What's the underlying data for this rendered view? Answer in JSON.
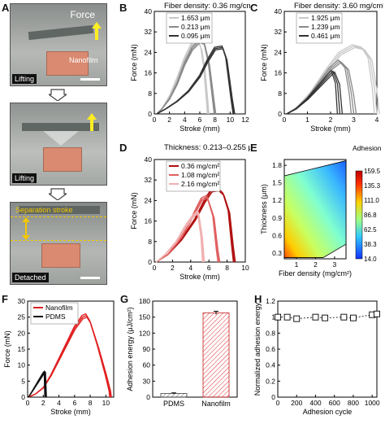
{
  "panel_labels": {
    "A": "A",
    "B": "B",
    "C": "C",
    "D": "D",
    "E": "E",
    "F": "F",
    "G": "G",
    "H": "H"
  },
  "photos": {
    "top": {
      "tag": "Lifting",
      "force": "Force",
      "nanofilm": "Nanofilm"
    },
    "middle": {
      "tag": "Lifting"
    },
    "bottom": {
      "tag": "Detached",
      "separation": "Separation stroke"
    }
  },
  "colors": {
    "pdms_box": "#d98a70",
    "force_label": "#ffffff",
    "arrow": "#ffee22",
    "separation": "#f3c800"
  },
  "chart_data": [
    {
      "id": "B",
      "type": "line",
      "title": "Fiber density: 0.36 mg/cm²",
      "xlabel": "Stroke (mm)",
      "ylabel": "Force (mN)",
      "xlim": [
        0,
        12
      ],
      "ylim": [
        0,
        40
      ],
      "xticks": [
        0,
        2,
        4,
        6,
        8,
        10,
        12
      ],
      "yticks": [
        0,
        8,
        16,
        24,
        32,
        40
      ],
      "legend_position": "top-left",
      "series": [
        {
          "name": "1.653 μm",
          "color": "#c8c8c8",
          "x": [
            0.3,
            1,
            2,
            3,
            4,
            5,
            5.7,
            6.2,
            6.6,
            7.0,
            7.1
          ],
          "y": [
            0,
            2,
            7,
            14,
            22,
            28,
            29.5,
            26,
            18,
            4,
            0
          ]
        },
        {
          "name": "0.213 μm",
          "color": "#8a8a8a",
          "x": [
            0.3,
            1,
            2,
            3,
            4,
            5,
            6,
            6.6,
            7.2,
            7.8,
            8.0
          ],
          "y": [
            0,
            2,
            6,
            12,
            20,
            26,
            29,
            28,
            20,
            5,
            0
          ]
        },
        {
          "name": "0.095 μm",
          "color": "#333333",
          "x": [
            0.3,
            1.5,
            3,
            4.5,
            6,
            7,
            8,
            9,
            9.5,
            10.2,
            10.5
          ],
          "y": [
            0,
            2,
            5,
            9,
            15,
            21,
            26,
            26.5,
            22,
            6,
            0
          ]
        }
      ]
    },
    {
      "id": "C",
      "type": "line",
      "title": "Fiber density: 3.60 mg/cm²",
      "xlabel": "Stroke (mm)",
      "ylabel": "Force (mN)",
      "xlim": [
        0,
        4
      ],
      "ylim": [
        0,
        40
      ],
      "xticks": [
        0,
        1,
        2,
        3,
        4
      ],
      "yticks": [
        0,
        8,
        16,
        24,
        32,
        40
      ],
      "legend_position": "top-left",
      "series": [
        {
          "name": "1.925 μm",
          "color": "#c8c8c8",
          "x": [
            0.1,
            0.6,
            1.2,
            1.8,
            2.4,
            3.0,
            3.4,
            3.7,
            3.9,
            4.0
          ],
          "y": [
            0,
            3,
            9,
            17,
            24,
            27,
            26,
            22,
            10,
            0
          ]
        },
        {
          "name": "1.239 μm",
          "color": "#8a8a8a",
          "x": [
            0.1,
            0.5,
            1.0,
            1.5,
            2.0,
            2.4,
            2.7,
            2.9,
            3.0
          ],
          "y": [
            0,
            2,
            6,
            12,
            18,
            21,
            18,
            8,
            0
          ]
        },
        {
          "name": "0.461 μm",
          "color": "#333333",
          "x": [
            0.1,
            0.5,
            1.0,
            1.4,
            1.8,
            2.1,
            2.3,
            2.4
          ],
          "y": [
            0,
            2,
            6,
            10,
            14,
            17,
            12,
            0
          ]
        }
      ]
    },
    {
      "id": "D",
      "type": "line",
      "title": "Thickness: 0.213–0.255 μm",
      "xlabel": "Stroke (mm)",
      "ylabel": "Force (mN)",
      "xlim": [
        0,
        10
      ],
      "ylim": [
        0,
        40
      ],
      "xticks": [
        0,
        2,
        4,
        6,
        8,
        10
      ],
      "yticks": [
        0,
        8,
        16,
        24,
        32,
        40
      ],
      "legend_position": "top-left",
      "series": [
        {
          "name": "0.36 mg/cm²",
          "color": "#b01010",
          "x": [
            0.2,
            1.5,
            3,
            4.5,
            5.5,
            6.3,
            7.0,
            7.6,
            8.2,
            8.6,
            8.8
          ],
          "y": [
            0,
            3,
            9,
            17,
            24,
            28.5,
            29,
            27,
            20,
            6,
            0
          ]
        },
        {
          "name": "1.08 mg/cm²",
          "color": "#e06060",
          "x": [
            0.2,
            1.5,
            3,
            4.2,
            5.2,
            5.8,
            6.5,
            6.9,
            7.1
          ],
          "y": [
            0,
            3,
            10,
            18,
            25,
            26,
            18,
            5,
            0
          ]
        },
        {
          "name": "2.16 mg/cm²",
          "color": "#f0b0b0",
          "x": [
            0.2,
            1.2,
            2.4,
            3.4,
            4.2,
            4.8,
            5.2,
            5.4
          ],
          "y": [
            0,
            3,
            8,
            14,
            18,
            20,
            10,
            0
          ]
        }
      ]
    },
    {
      "id": "E",
      "type": "heatmap",
      "xlabel": "Fiber density (mg/cm²)",
      "ylabel": "Thickness (μm)",
      "xlim": [
        0.36,
        3.6
      ],
      "ylim": [
        0.2,
        1.9
      ],
      "xticks": [
        1,
        2,
        3
      ],
      "yticks": [
        0.3,
        0.6,
        0.9,
        1.2,
        1.5,
        1.8
      ],
      "colorbar_title": "Adhesion energy (μJ/cm²)",
      "colorbar_ticks": [
        159.5,
        135.3,
        111.0,
        86.8,
        62.5,
        38.3,
        14.0
      ],
      "colorbar_range": [
        14.0,
        159.5
      ]
    },
    {
      "id": "F",
      "type": "line",
      "xlabel": "Stroke (mm)",
      "ylabel": "Force (mN)",
      "xlim": [
        0,
        11
      ],
      "ylim": [
        0,
        30
      ],
      "xticks": [
        0,
        2,
        4,
        6,
        8,
        10
      ],
      "yticks": [
        0,
        5,
        10,
        15,
        20,
        25,
        30
      ],
      "legend_position": "top-left",
      "series": [
        {
          "name": "Nanofilm",
          "color": "#e02020",
          "x": [
            0.1,
            1,
            2,
            3,
            4,
            5,
            6,
            7,
            7.5,
            8,
            9,
            10,
            10.5,
            10.6
          ],
          "y": [
            0,
            1,
            3,
            7,
            12,
            17,
            22,
            25.5,
            26,
            24,
            16,
            7,
            2,
            0
          ]
        },
        {
          "name": "PDMS",
          "color": "#111111",
          "x": [
            0.1,
            0.5,
            1.0,
            1.5,
            2.0,
            2.2,
            2.3
          ],
          "y": [
            0,
            1.5,
            3.5,
            5.5,
            7.5,
            8,
            0
          ]
        }
      ]
    },
    {
      "id": "G",
      "type": "bar",
      "ylabel": "Adhesion energy (μJ/cm²)",
      "categories": [
        "PDMS",
        "Nanofilm"
      ],
      "values": [
        7,
        158
      ],
      "errors": [
        1,
        3
      ],
      "ylim": [
        0,
        180
      ],
      "yticks": [
        0,
        30,
        60,
        90,
        120,
        150,
        180
      ]
    },
    {
      "id": "H",
      "type": "scatter",
      "xlabel": "Adhesion cycle",
      "ylabel": "Normalized adhesion energy",
      "xlim": [
        0,
        1050
      ],
      "ylim": [
        0,
        1.2
      ],
      "xticks": [
        0,
        200,
        400,
        600,
        800,
        1000
      ],
      "yticks": [
        0,
        0.2,
        0.4,
        0.6,
        0.8,
        1.0,
        1.2
      ],
      "x": [
        1,
        100,
        200,
        400,
        500,
        700,
        800,
        1000,
        1050
      ],
      "y": [
        1.0,
        1.0,
        0.98,
        1.0,
        0.99,
        1.0,
        0.99,
        1.03,
        1.04
      ],
      "errors": [
        0.03,
        0.03,
        0.03,
        0.03,
        0.03,
        0.03,
        0.03,
        0.03,
        0.03
      ]
    }
  ]
}
